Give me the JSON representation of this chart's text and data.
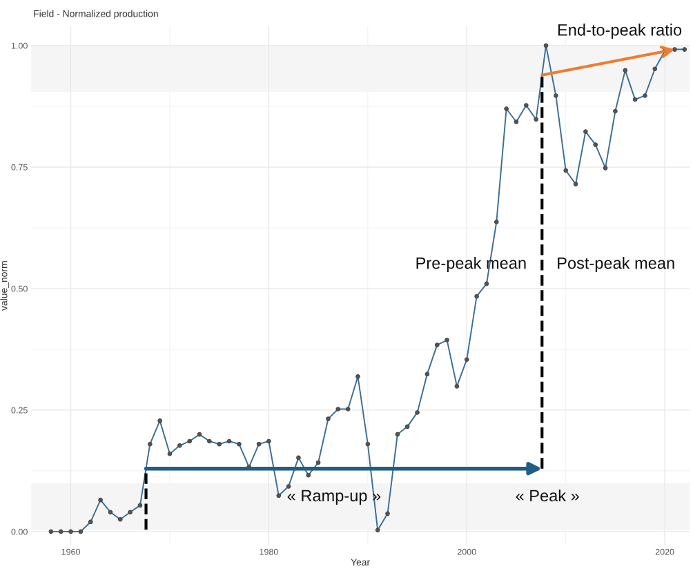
{
  "chart_data": {
    "type": "line",
    "title": "Field - Normalized production",
    "xlabel": "Year",
    "ylabel": "value_norm",
    "x": [
      1958,
      1959,
      1960,
      1961,
      1962,
      1963,
      1964,
      1965,
      1966,
      1967,
      1968,
      1969,
      1970,
      1971,
      1972,
      1973,
      1974,
      1975,
      1976,
      1977,
      1978,
      1979,
      1980,
      1981,
      1982,
      1983,
      1984,
      1985,
      1986,
      1987,
      1988,
      1989,
      1990,
      1991,
      1992,
      1993,
      1994,
      1995,
      1996,
      1997,
      1998,
      1999,
      2000,
      2001,
      2002,
      2003,
      2004,
      2005,
      2006,
      2007,
      2008,
      2009,
      2010,
      2011,
      2012,
      2013,
      2014,
      2015,
      2016,
      2017,
      2018,
      2019,
      2020,
      2021,
      2022
    ],
    "series": [
      {
        "color": "#3b6e96",
        "values": [
          0,
          0,
          0,
          0,
          0.02,
          0.065,
          0.04,
          0.025,
          0.04,
          0.054,
          0.18,
          0.228,
          0.16,
          0.177,
          0.186,
          0.2,
          0.186,
          0.18,
          0.186,
          0.18,
          0.133,
          0.18,
          0.186,
          0.074,
          0.093,
          0.152,
          0.116,
          0.142,
          0.232,
          0.252,
          0.252,
          0.319,
          0.18,
          0.003,
          0.037,
          0.2,
          0.216,
          0.245,
          0.324,
          0.384,
          0.394,
          0.299,
          0.354,
          0.484,
          0.51,
          0.637,
          0.87,
          0.843,
          0.877,
          0.848,
          1.0,
          0.897,
          0.743,
          0.715,
          0.823,
          0.796,
          0.748,
          0.865,
          0.949,
          0.889,
          0.897,
          0.952,
          0.989,
          0.992,
          0.992
        ]
      }
    ],
    "marker": "circle",
    "grid": true,
    "xlim": [
      1956,
      2022.5
    ],
    "xticks": [
      1960,
      1980,
      2000,
      2020
    ],
    "ylim": [
      -0.028,
      1.04
    ],
    "yticks": [
      {
        "value": 0,
        "label": "0.00"
      },
      {
        "value": 0.25,
        "label": "0.25"
      },
      {
        "value": 0.5,
        "label": "0.50"
      },
      {
        "value": 0.75,
        "label": "0.75"
      },
      {
        "value": 1,
        "label": "1.00"
      }
    ],
    "bands": [
      {
        "axis": "y",
        "from": 0.003,
        "to": 0.1,
        "color": "#f5f5f5"
      },
      {
        "axis": "y",
        "from": 0.905,
        "to": 1.0,
        "color": "#f5f5f5"
      }
    ],
    "ref_lines": [
      {
        "axis": "x",
        "value": 1967.6,
        "color": "#000000",
        "line_style": "dashed"
      },
      {
        "axis": "x",
        "value": 2007.6,
        "color": "#000000",
        "line_style": "dashed"
      }
    ],
    "annotations": [
      {
        "text": "End-to-peak ratio",
        "x": 2021,
        "y": 0.992
      },
      "Pre-peak mean",
      "Post-peak mean",
      "« Ramp-up »",
      "« Peak »"
    ]
  }
}
